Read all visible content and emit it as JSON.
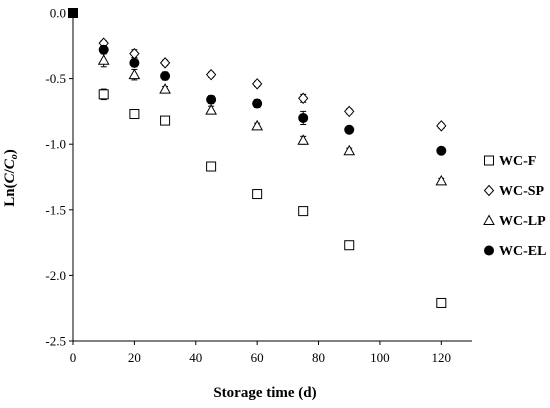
{
  "chart_data": {
    "type": "scatter",
    "xlabel": "Storage time (d)",
    "ylabel": "Ln(C/Co)",
    "xlim": [
      0,
      130
    ],
    "ylim": [
      -2.5,
      0.0
    ],
    "xticks": [
      0,
      20,
      40,
      60,
      80,
      100,
      120
    ],
    "yticks": [
      0.0,
      -0.5,
      -1.0,
      -1.5,
      -2.0,
      -2.5
    ],
    "xtick_labels": [
      "0",
      "20",
      "40",
      "60",
      "80",
      "100",
      "120"
    ],
    "ytick_labels": [
      "0.0",
      "-0.5",
      "-1.0",
      "-1.5",
      "-2.0",
      "-2.5"
    ],
    "grid": false,
    "legend_position": "right",
    "series": [
      {
        "name": "WC-F",
        "marker": "square-open",
        "x": [
          0,
          10,
          20,
          30,
          45,
          60,
          75,
          90,
          120
        ],
        "y": [
          0.0,
          -0.62,
          -0.77,
          -0.82,
          -1.17,
          -1.38,
          -1.51,
          -1.77,
          -2.21
        ],
        "err": [
          0,
          0.04,
          0.02,
          0.02,
          0.03,
          0.02,
          0.03,
          0.02,
          0.02
        ]
      },
      {
        "name": "WC-SP",
        "marker": "diamond-open",
        "x": [
          0,
          10,
          20,
          30,
          45,
          60,
          75,
          90,
          120
        ],
        "y": [
          0.0,
          -0.23,
          -0.31,
          -0.38,
          -0.47,
          -0.54,
          -0.65,
          -0.75,
          -0.86
        ],
        "err": [
          0,
          0.02,
          0.03,
          0.02,
          0.02,
          0.02,
          0.03,
          0.02,
          0.02
        ]
      },
      {
        "name": "WC-LP",
        "marker": "triangle-open",
        "x": [
          0,
          10,
          20,
          30,
          45,
          60,
          75,
          90,
          120
        ],
        "y": [
          0.0,
          -0.36,
          -0.47,
          -0.58,
          -0.74,
          -0.86,
          -0.97,
          -1.05,
          -1.28
        ],
        "err": [
          0,
          0.05,
          0.04,
          0.02,
          0.03,
          0.02,
          0.03,
          0.02,
          0.02
        ]
      },
      {
        "name": "WC-EL",
        "marker": "circle-filled",
        "x": [
          0,
          10,
          20,
          30,
          45,
          60,
          75,
          90,
          120
        ],
        "y": [
          0.0,
          -0.28,
          -0.38,
          -0.48,
          -0.66,
          -0.69,
          -0.8,
          -0.89,
          -1.05
        ],
        "err": [
          0,
          0.03,
          0.03,
          0.03,
          0.03,
          0.03,
          0.05,
          0.02,
          0.02
        ]
      }
    ]
  }
}
